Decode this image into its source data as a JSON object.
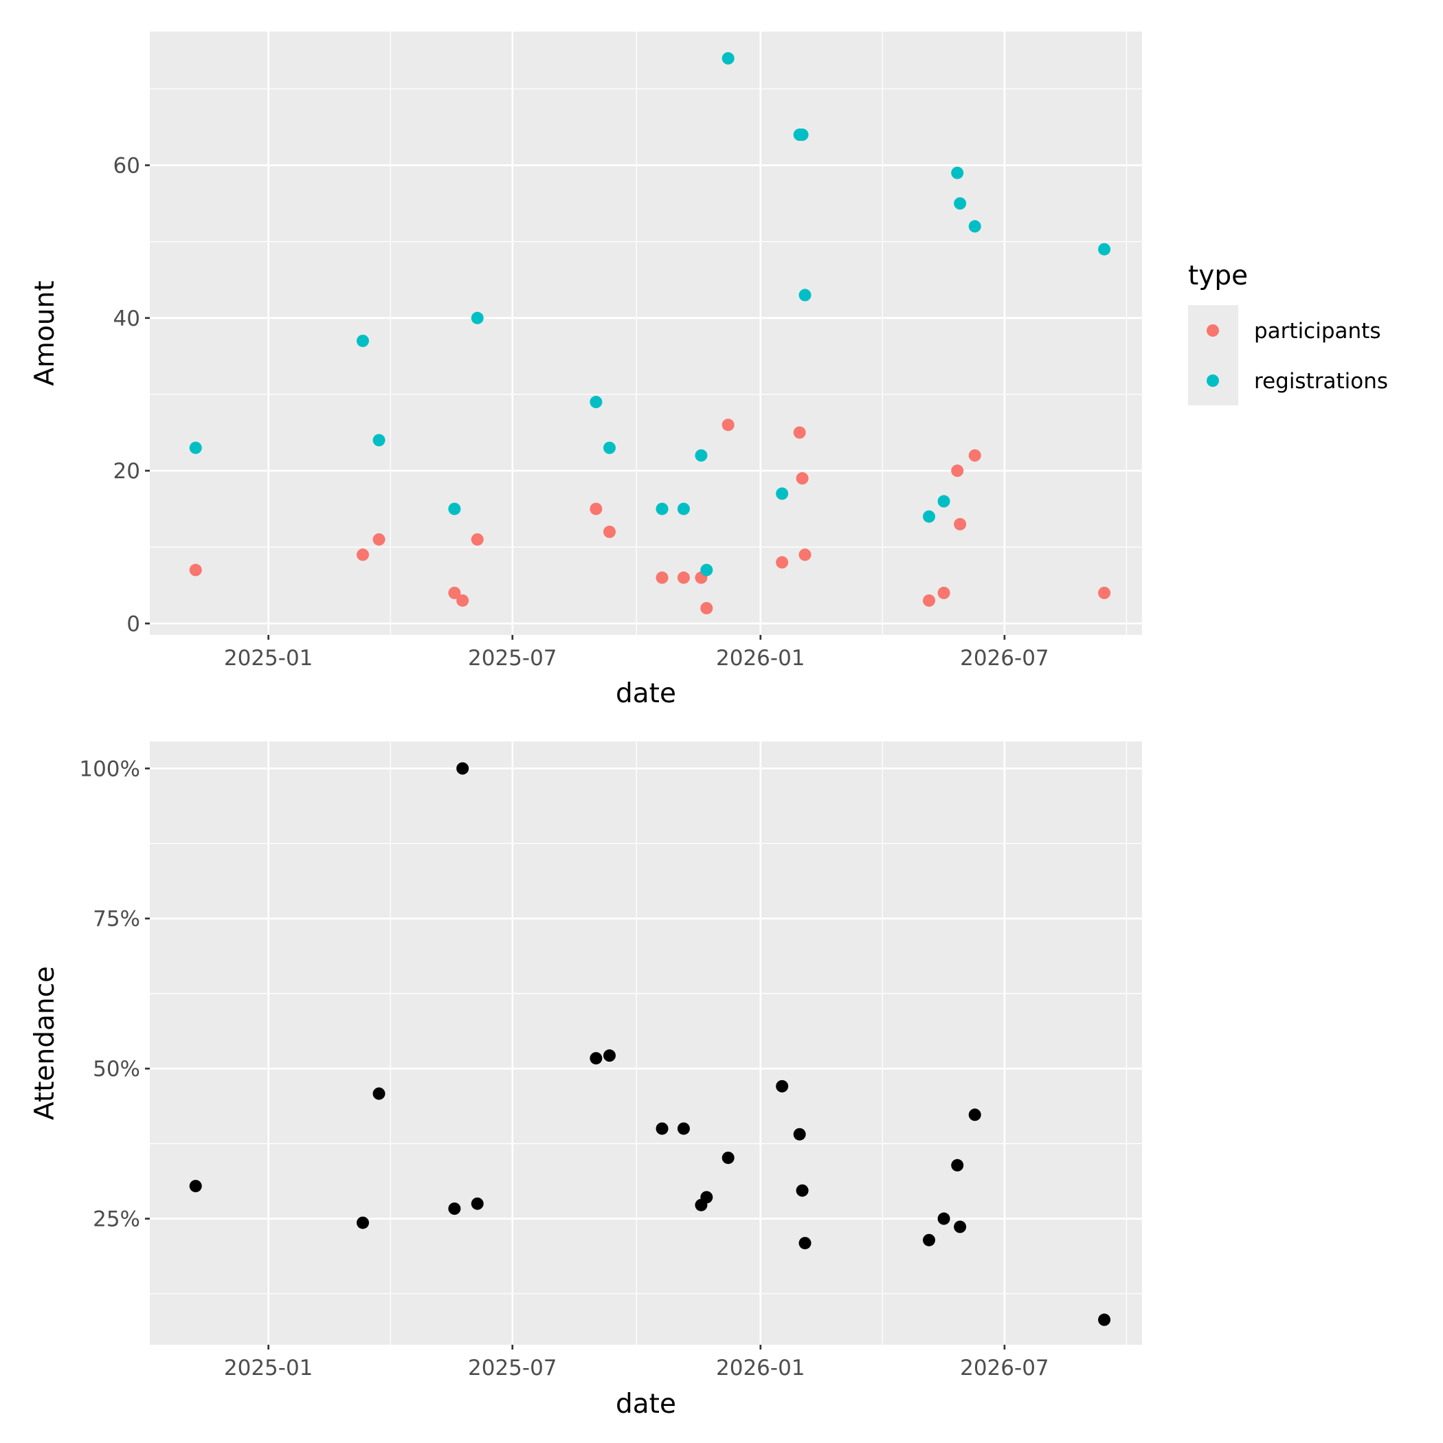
{
  "chart_data": [
    {
      "type": "scatter",
      "xlabel": "date",
      "ylabel": "Amount",
      "x_tick_labels": [
        "2025-01",
        "2025-07",
        "2026-01",
        "2026-07"
      ],
      "y_tick_labels": [
        "0",
        "20",
        "40",
        "60"
      ],
      "ylim": [
        -1.5,
        77.5
      ],
      "xlim": [
        "2024-10-05",
        "2026-10-11"
      ],
      "grid": true,
      "legend": {
        "title": "type",
        "position": "right",
        "entries": [
          {
            "label": "participants",
            "color": "#F8766D"
          },
          {
            "label": "registrations",
            "color": "#00BFC4"
          }
        ]
      },
      "series": [
        {
          "name": "participants",
          "color": "#F8766D",
          "points": [
            [
              "2024-11-08",
              7
            ],
            [
              "2025-03-12",
              9
            ],
            [
              "2025-03-24",
              11
            ],
            [
              "2025-05-19",
              4
            ],
            [
              "2025-05-25",
              3
            ],
            [
              "2025-06-05",
              11
            ],
            [
              "2025-09-01",
              15
            ],
            [
              "2025-09-11",
              12
            ],
            [
              "2025-10-20",
              6
            ],
            [
              "2025-11-05",
              6
            ],
            [
              "2025-11-18",
              6
            ],
            [
              "2025-11-22",
              2
            ],
            [
              "2025-12-08",
              26
            ],
            [
              "2026-01-17",
              8
            ],
            [
              "2026-01-30",
              25
            ],
            [
              "2026-02-01",
              19
            ],
            [
              "2026-02-03",
              9
            ],
            [
              "2026-05-06",
              3
            ],
            [
              "2026-05-17",
              4
            ],
            [
              "2026-05-27",
              20
            ],
            [
              "2026-05-29",
              13
            ],
            [
              "2026-06-09",
              22
            ],
            [
              "2026-09-13",
              4
            ]
          ]
        },
        {
          "name": "registrations",
          "color": "#00BFC4",
          "points": [
            [
              "2024-11-08",
              23
            ],
            [
              "2025-03-12",
              37
            ],
            [
              "2025-03-24",
              24
            ],
            [
              "2025-05-19",
              15
            ],
            [
              "2025-06-05",
              40
            ],
            [
              "2025-09-01",
              29
            ],
            [
              "2025-09-11",
              23
            ],
            [
              "2025-10-20",
              15
            ],
            [
              "2025-11-05",
              15
            ],
            [
              "2025-11-18",
              22
            ],
            [
              "2025-11-22",
              7
            ],
            [
              "2025-12-08",
              74
            ],
            [
              "2026-01-17",
              17
            ],
            [
              "2026-01-30",
              64
            ],
            [
              "2026-02-01",
              64
            ],
            [
              "2026-02-03",
              43
            ],
            [
              "2026-05-06",
              14
            ],
            [
              "2026-05-17",
              16
            ],
            [
              "2026-05-27",
              59
            ],
            [
              "2026-05-29",
              55
            ],
            [
              "2026-06-09",
              52
            ],
            [
              "2026-09-13",
              49
            ]
          ]
        }
      ]
    },
    {
      "type": "scatter",
      "xlabel": "date",
      "ylabel": "Attendance",
      "x_tick_labels": [
        "2025-01",
        "2025-07",
        "2026-01",
        "2026-07"
      ],
      "y_tick_labels": [
        "25%",
        "50%",
        "75%",
        "100%"
      ],
      "y_format": "percent",
      "ylim": [
        0.04,
        1.045
      ],
      "xlim": [
        "2024-10-05",
        "2026-10-11"
      ],
      "grid": true,
      "series": [
        {
          "name": "",
          "color": "#000000",
          "points": [
            [
              "2024-11-08",
              0.3043
            ],
            [
              "2025-03-12",
              0.2432
            ],
            [
              "2025-03-24",
              0.4583
            ],
            [
              "2025-05-19",
              0.2667
            ],
            [
              "2025-05-25",
              1.0
            ],
            [
              "2025-06-05",
              0.275
            ],
            [
              "2025-09-01",
              0.5172
            ],
            [
              "2025-09-11",
              0.5217
            ],
            [
              "2025-10-20",
              0.4
            ],
            [
              "2025-11-05",
              0.4
            ],
            [
              "2025-11-18",
              0.2727
            ],
            [
              "2025-11-22",
              0.2857
            ],
            [
              "2025-12-08",
              0.3514
            ],
            [
              "2026-01-17",
              0.4706
            ],
            [
              "2026-01-30",
              0.3906
            ],
            [
              "2026-02-01",
              0.2969
            ],
            [
              "2026-02-03",
              0.2093
            ],
            [
              "2026-05-06",
              0.2143
            ],
            [
              "2026-05-17",
              0.25
            ],
            [
              "2026-05-27",
              0.339
            ],
            [
              "2026-05-29",
              0.2364
            ],
            [
              "2026-06-09",
              0.4231
            ],
            [
              "2026-09-13",
              0.0816
            ]
          ]
        }
      ]
    }
  ]
}
